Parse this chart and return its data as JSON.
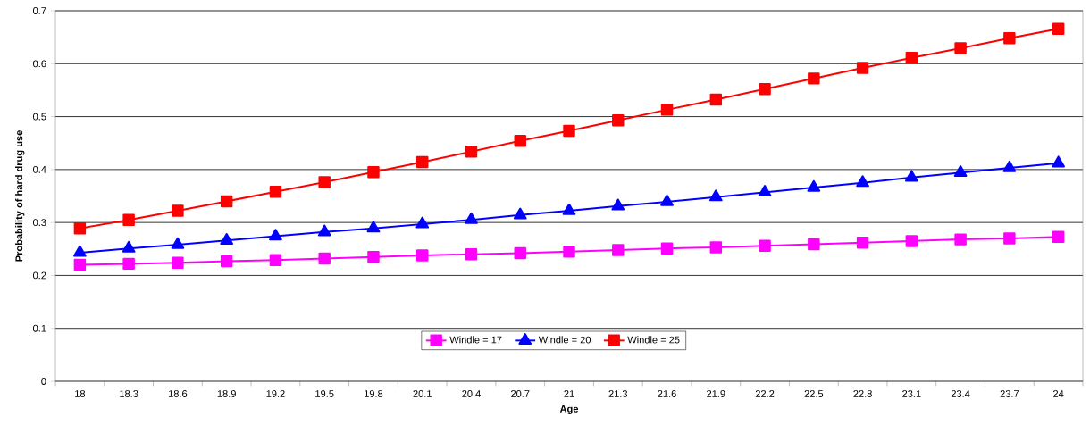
{
  "chart_data": {
    "type": "line",
    "xlabel": "Age",
    "ylabel": "Probability of hard drug use",
    "categories": [
      "18",
      "18.3",
      "18.6",
      "18.9",
      "19.2",
      "19.5",
      "19.8",
      "20.1",
      "20.4",
      "20.7",
      "21",
      "21.3",
      "21.6",
      "21.9",
      "22.2",
      "22.5",
      "22.8",
      "23.1",
      "23.4",
      "23.7",
      "24"
    ],
    "series": [
      {
        "name": "Windle = 17",
        "color": "#ff00ff",
        "marker": "square",
        "values": [
          0.22,
          0.222,
          0.224,
          0.227,
          0.229,
          0.232,
          0.235,
          0.238,
          0.24,
          0.242,
          0.245,
          0.248,
          0.251,
          0.253,
          0.256,
          0.259,
          0.262,
          0.265,
          0.268,
          0.27,
          0.273
        ]
      },
      {
        "name": "Windle = 20",
        "color": "#0000ff",
        "marker": "triangle",
        "values": [
          0.243,
          0.251,
          0.258,
          0.266,
          0.274,
          0.282,
          0.289,
          0.297,
          0.305,
          0.314,
          0.322,
          0.331,
          0.339,
          0.348,
          0.357,
          0.366,
          0.375,
          0.385,
          0.394,
          0.403,
          0.412
        ]
      },
      {
        "name": "Windle = 25",
        "color": "#ff0000",
        "marker": "square",
        "values": [
          0.289,
          0.305,
          0.322,
          0.34,
          0.358,
          0.376,
          0.395,
          0.414,
          0.434,
          0.454,
          0.473,
          0.493,
          0.513,
          0.532,
          0.552,
          0.572,
          0.592,
          0.611,
          0.629,
          0.648,
          0.666
        ]
      }
    ],
    "ylim": [
      0,
      0.7
    ],
    "yticks": [
      0,
      0.1,
      0.2,
      0.3,
      0.4,
      0.5,
      0.6,
      0.7
    ],
    "grid": "y",
    "legend": "bottom",
    "line_style": "solid"
  }
}
